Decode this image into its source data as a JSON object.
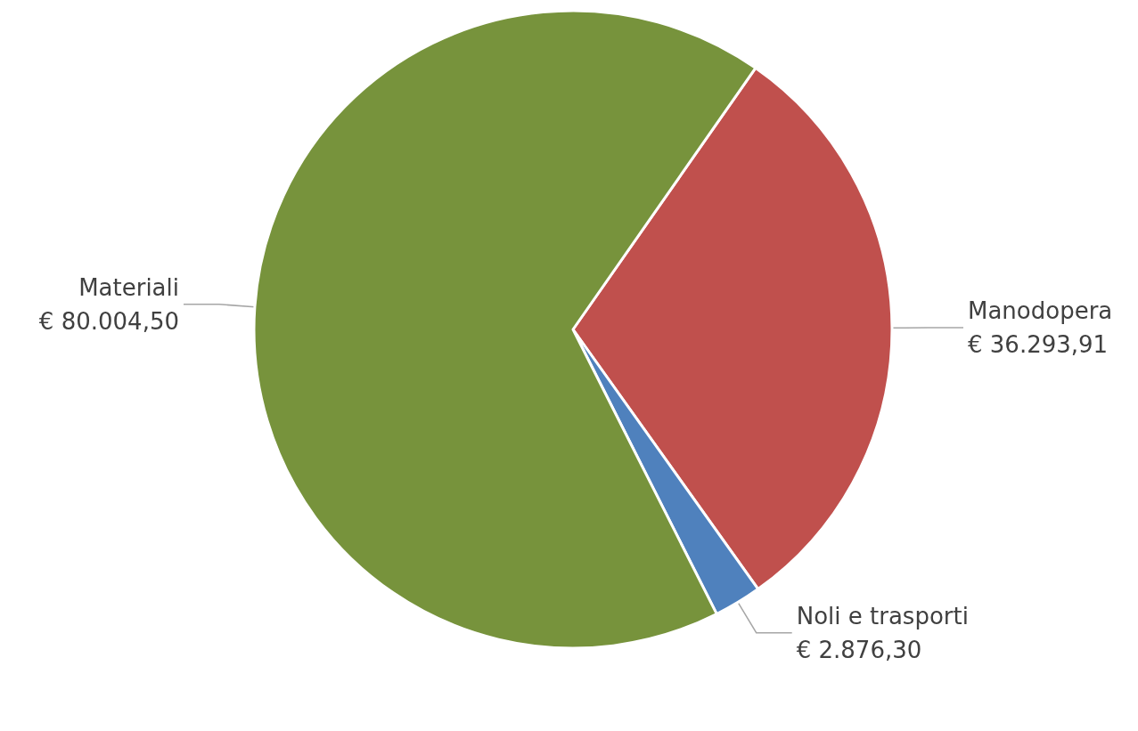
{
  "chart_data": {
    "type": "pie",
    "categories": [
      "Manodopera",
      "Noli e trasporti",
      "Materiali"
    ],
    "values": [
      36293.91,
      2876.3,
      80004.5
    ],
    "value_labels": [
      "€ 36.293,91",
      "€ 2.876,30",
      "€ 80.004,50"
    ],
    "colors": [
      "#c0504d",
      "#4f81bd",
      "#77933c"
    ]
  }
}
